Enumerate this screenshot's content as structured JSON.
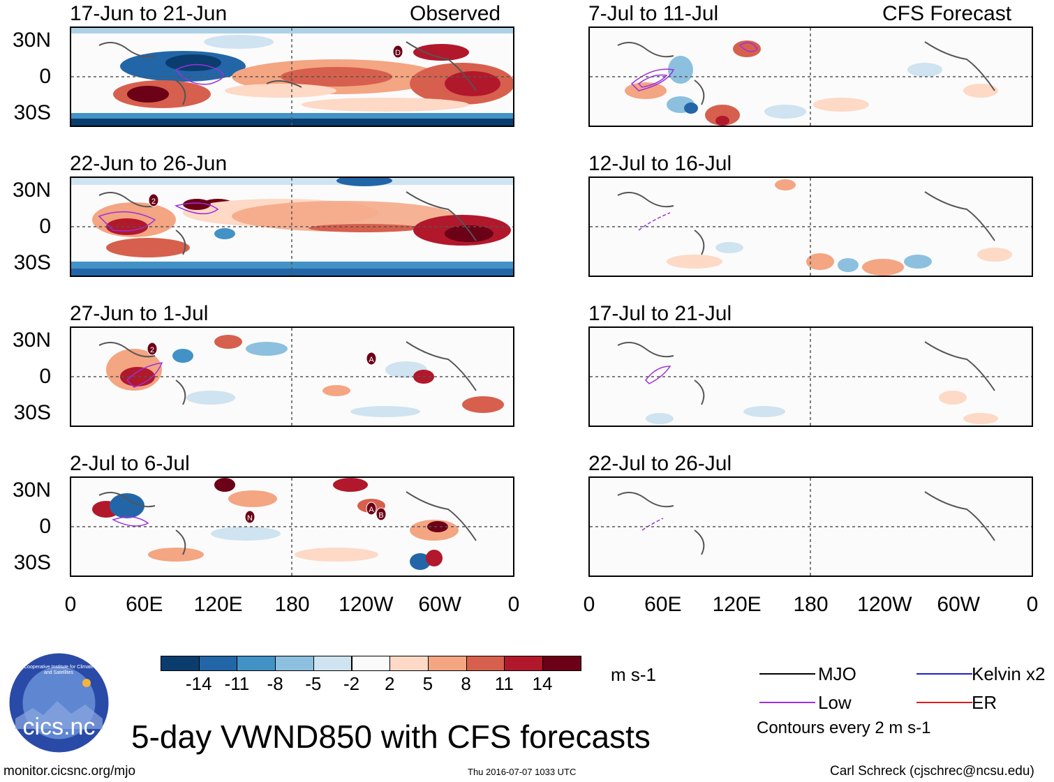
{
  "left_panels": [
    {
      "title": "17-Jun to 21-Jun",
      "tag": "Observed"
    },
    {
      "title": "22-Jun to 26-Jun",
      "tag": ""
    },
    {
      "title": "27-Jun to 1-Jul",
      "tag": ""
    },
    {
      "title": "2-Jul to 6-Jul",
      "tag": ""
    }
  ],
  "right_panels": [
    {
      "title": "7-Jul to 11-Jul",
      "tag": "CFS Forecast"
    },
    {
      "title": "12-Jul to 16-Jul",
      "tag": ""
    },
    {
      "title": "17-Jul to 21-Jul",
      "tag": ""
    },
    {
      "title": "22-Jul to 26-Jul",
      "tag": ""
    }
  ],
  "y_ticks": [
    "30N",
    "0",
    "30S"
  ],
  "x_ticks": [
    "0",
    "60E",
    "120E",
    "180",
    "120W",
    "60W",
    "0"
  ],
  "colorbar": {
    "colors": [
      "#0b3c6e",
      "#2266a8",
      "#4292c6",
      "#8cc0de",
      "#cfe3f0",
      "#fafafa",
      "#fdd9c6",
      "#f4a582",
      "#d6604d",
      "#b2182b",
      "#6b0016"
    ],
    "labels": [
      "-14",
      "-11",
      "-8",
      "-5",
      "-2",
      "2",
      "5",
      "8",
      "11",
      "14"
    ],
    "units": "m s-1"
  },
  "legend": {
    "items": [
      {
        "label": "MJO",
        "color": "#000000"
      },
      {
        "label": "Kelvin x2",
        "color": "#1f1fd0"
      },
      {
        "label": "Low",
        "color": "#9b30e0"
      },
      {
        "label": "ER",
        "color": "#e01b1b"
      }
    ],
    "note": "Contours every 2 m s-1"
  },
  "logo_text": "cics.nc",
  "logo_ring_text": "Cooperative Institute for Climate and Satellites",
  "main_title": "5-day VWND850 with CFS forecasts",
  "footer": {
    "left": "monitor.cicsnc.org/mjo",
    "center": "Thu 2016-07-07 1033 UTC",
    "right": "Carl Schreck (cjschrec@ncsu.edu)"
  },
  "storm_labels": [
    "D",
    "2",
    "2",
    "A",
    "N",
    "A",
    "B"
  ]
}
